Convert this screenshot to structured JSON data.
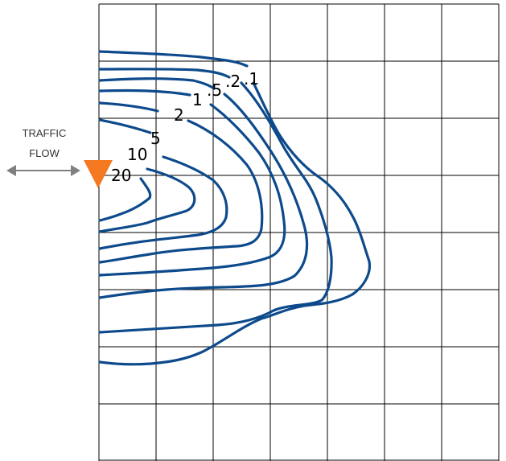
{
  "traffic_label": [
    "TRAFFIC",
    "FLOW"
  ],
  "contour_labels": {
    "l20": "20",
    "l10": "10",
    "l5": "5",
    "l2": "2",
    "l1": "1",
    "l05": ".5",
    "l02": ".2",
    "l01": ".1"
  },
  "colors": {
    "contour": "#0d4a8c",
    "source_marker": "#f47920",
    "arrow": "#808080",
    "grid": "#000000"
  },
  "icons": {
    "source": "orange-triangle-marker",
    "traffic": "double-headed-arrow"
  }
}
